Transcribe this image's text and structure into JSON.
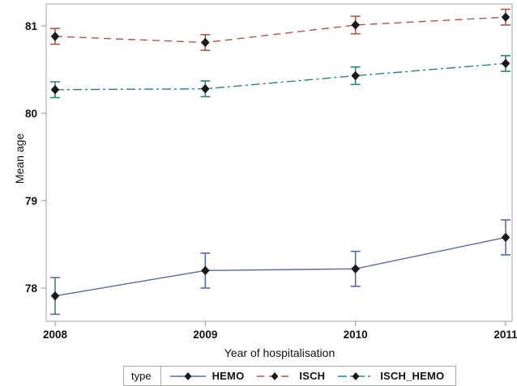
{
  "figure": {
    "background": "#ffffff",
    "plot_border_color": "#a6a6a6",
    "tick_color": "#8c8c8c",
    "text_color": "#111111"
  },
  "chart_data": {
    "type": "line",
    "title": "",
    "xlabel": "Year of hospitalisation",
    "ylabel": "Mean age",
    "categories": [
      "2008",
      "2009",
      "2010",
      "2011"
    ],
    "series": [
      {
        "name": "HEMO",
        "values": [
          77.91,
          78.2,
          78.22,
          78.58
        ],
        "errors": [
          0.21,
          0.2,
          0.2,
          0.2
        ],
        "color": "#5A69A5",
        "dash": "solid",
        "marker": "diamond"
      },
      {
        "name": "ISCH",
        "values": [
          80.88,
          80.81,
          81.01,
          81.1
        ],
        "errors": [
          0.09,
          0.09,
          0.1,
          0.09
        ],
        "color": "#B1554B",
        "dash": "dash",
        "marker": "diamond"
      },
      {
        "name": "ISCH_HEMO",
        "values": [
          80.27,
          80.28,
          80.43,
          80.57
        ],
        "errors": [
          0.09,
          0.09,
          0.1,
          0.09
        ],
        "color": "#2C8579",
        "dash": "dashdot",
        "marker": "diamond"
      }
    ],
    "marker_color": "#1a1a1a",
    "yticks": [
      78,
      79,
      80,
      81
    ],
    "ylim": [
      77.62,
      81.25
    ],
    "grid": false,
    "legend": {
      "title": "type",
      "position": "bottom"
    }
  }
}
